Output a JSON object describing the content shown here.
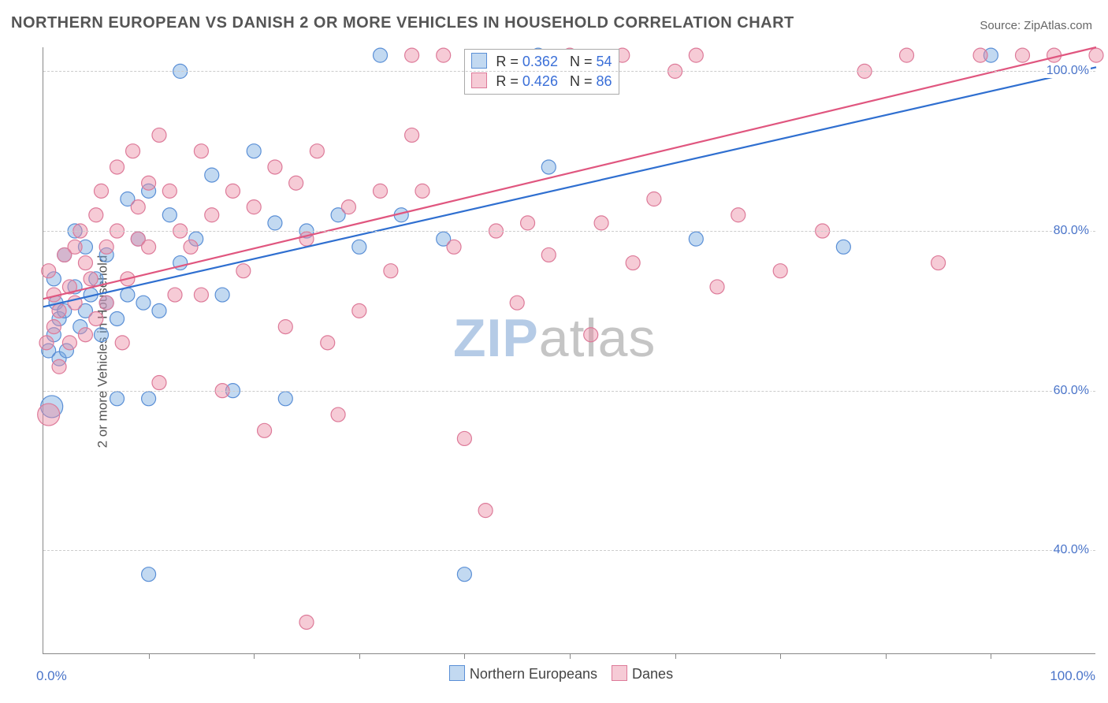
{
  "title": "NORTHERN EUROPEAN VS DANISH 2 OR MORE VEHICLES IN HOUSEHOLD CORRELATION CHART",
  "source_prefix": "Source: ",
  "source_name": "ZipAtlas.com",
  "y_axis_label": "2 or more Vehicles in Household",
  "watermark_a": "ZIP",
  "watermark_b": "atlas",
  "chart": {
    "type": "scatter",
    "xlim": [
      0,
      100
    ],
    "ylim": [
      27,
      103
    ],
    "x_ticks_label": [
      "0.0%",
      "100.0%"
    ],
    "x_minor_ticks": [
      10,
      20,
      30,
      40,
      50,
      60,
      70,
      80,
      90
    ],
    "y_ticks": [
      {
        "v": 40,
        "label": "40.0%"
      },
      {
        "v": 60,
        "label": "60.0%"
      },
      {
        "v": 80,
        "label": "80.0%"
      },
      {
        "v": 100,
        "label": "100.0%"
      }
    ],
    "grid_color": "#cccccc",
    "axis_color": "#888888",
    "background_color": "#ffffff",
    "label_color": "#4a74c9",
    "marker_radius": 9,
    "marker_big_radius": 14,
    "series": [
      {
        "name": "Northern Europeans",
        "fill": "rgba(120,170,225,0.45)",
        "stroke": "#5a8fd6",
        "trend_color": "#2f6fd0",
        "trend": {
          "x1": 0,
          "y1": 70.5,
          "x2": 100,
          "y2": 100.5
        },
        "stats": {
          "R": "0.362",
          "N": "54"
        },
        "points": [
          [
            0.5,
            65
          ],
          [
            0.8,
            58,
            "big"
          ],
          [
            1,
            74
          ],
          [
            1,
            67
          ],
          [
            1.2,
            71
          ],
          [
            1.5,
            69
          ],
          [
            1.5,
            64
          ],
          [
            2,
            77
          ],
          [
            2,
            70
          ],
          [
            2.2,
            65
          ],
          [
            3,
            73
          ],
          [
            3,
            80
          ],
          [
            3.5,
            68
          ],
          [
            4,
            78
          ],
          [
            4,
            70
          ],
          [
            4.5,
            72
          ],
          [
            5,
            74
          ],
          [
            5.5,
            67
          ],
          [
            6,
            71
          ],
          [
            6,
            77
          ],
          [
            7,
            69
          ],
          [
            7,
            59
          ],
          [
            8,
            84
          ],
          [
            8,
            72
          ],
          [
            9,
            79
          ],
          [
            9.5,
            71
          ],
          [
            10,
            85
          ],
          [
            10,
            59
          ],
          [
            10,
            37
          ],
          [
            11,
            70
          ],
          [
            12,
            82
          ],
          [
            13,
            100
          ],
          [
            13,
            76
          ],
          [
            14.5,
            79
          ],
          [
            16,
            87
          ],
          [
            17,
            72
          ],
          [
            18,
            60
          ],
          [
            20,
            90
          ],
          [
            22,
            81
          ],
          [
            23,
            59
          ],
          [
            25,
            80
          ],
          [
            28,
            82
          ],
          [
            30,
            78
          ],
          [
            32,
            102
          ],
          [
            34,
            82
          ],
          [
            38,
            79
          ],
          [
            40,
            37
          ],
          [
            44,
            100
          ],
          [
            47,
            102
          ],
          [
            48,
            88
          ],
          [
            51,
            100
          ],
          [
            62,
            79
          ],
          [
            76,
            78
          ],
          [
            90,
            102
          ]
        ]
      },
      {
        "name": "Danes",
        "fill": "rgba(235,140,165,0.45)",
        "stroke": "#dd7a99",
        "trend_color": "#e0567f",
        "trend": {
          "x1": 0,
          "y1": 71.5,
          "x2": 100,
          "y2": 103
        },
        "stats": {
          "R": "0.426",
          "N": "86"
        },
        "points": [
          [
            0.3,
            66
          ],
          [
            0.5,
            57,
            "big"
          ],
          [
            0.5,
            75
          ],
          [
            1,
            68
          ],
          [
            1,
            72
          ],
          [
            1.5,
            63
          ],
          [
            1.5,
            70
          ],
          [
            2,
            77
          ],
          [
            2.5,
            66
          ],
          [
            2.5,
            73
          ],
          [
            3,
            78
          ],
          [
            3,
            71
          ],
          [
            3.5,
            80
          ],
          [
            4,
            67
          ],
          [
            4,
            76
          ],
          [
            4.5,
            74
          ],
          [
            5,
            82
          ],
          [
            5,
            69
          ],
          [
            5.5,
            85
          ],
          [
            6,
            78
          ],
          [
            6,
            71
          ],
          [
            7,
            88
          ],
          [
            7,
            80
          ],
          [
            7.5,
            66
          ],
          [
            8,
            74
          ],
          [
            8.5,
            90
          ],
          [
            9,
            79
          ],
          [
            9,
            83
          ],
          [
            10,
            86
          ],
          [
            10,
            78
          ],
          [
            11,
            61
          ],
          [
            11,
            92
          ],
          [
            12,
            85
          ],
          [
            12.5,
            72
          ],
          [
            13,
            80
          ],
          [
            14,
            78
          ],
          [
            15,
            90
          ],
          [
            15,
            72
          ],
          [
            16,
            82
          ],
          [
            17,
            60
          ],
          [
            18,
            85
          ],
          [
            19,
            75
          ],
          [
            20,
            83
          ],
          [
            21,
            55
          ],
          [
            22,
            88
          ],
          [
            23,
            68
          ],
          [
            24,
            86
          ],
          [
            25,
            31
          ],
          [
            25,
            79
          ],
          [
            26,
            90
          ],
          [
            27,
            66
          ],
          [
            28,
            57
          ],
          [
            29,
            83
          ],
          [
            30,
            70
          ],
          [
            32,
            85
          ],
          [
            33,
            75
          ],
          [
            35,
            92
          ],
          [
            35,
            102
          ],
          [
            36,
            85
          ],
          [
            38,
            102
          ],
          [
            39,
            78
          ],
          [
            40,
            54
          ],
          [
            42,
            45
          ],
          [
            43,
            80
          ],
          [
            45,
            71
          ],
          [
            46,
            81
          ],
          [
            48,
            77
          ],
          [
            50,
            102
          ],
          [
            52,
            67
          ],
          [
            53,
            81
          ],
          [
            55,
            102
          ],
          [
            56,
            76
          ],
          [
            58,
            84
          ],
          [
            60,
            100
          ],
          [
            62,
            102
          ],
          [
            64,
            73
          ],
          [
            66,
            82
          ],
          [
            70,
            75
          ],
          [
            74,
            80
          ],
          [
            78,
            100
          ],
          [
            82,
            102
          ],
          [
            85,
            76
          ],
          [
            89,
            102
          ],
          [
            93,
            102
          ],
          [
            96,
            102
          ],
          [
            100,
            102
          ]
        ]
      }
    ]
  },
  "legend_labels": {
    "r": "R =",
    "n": "N ="
  }
}
